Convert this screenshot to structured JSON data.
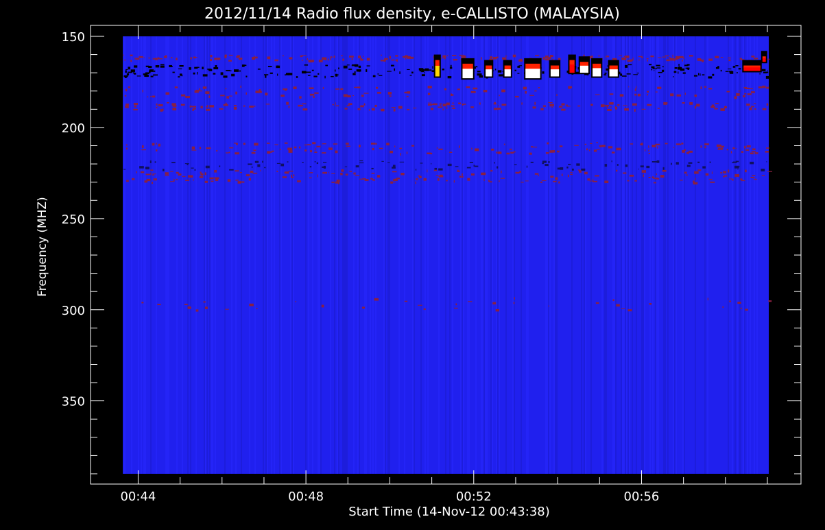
{
  "chart_data": {
    "type": "heatmap",
    "title": "2012/11/14  Radio flux density, e-CALLISTO (MALAYSIA)",
    "xlabel": "Start Time (14-Nov-12 00:43:38)",
    "ylabel": "Frequency (MHZ)",
    "x_tick_labels": [
      "00:44",
      "00:48",
      "00:52",
      "00:56"
    ],
    "x_tick_minutes": [
      0.3667,
      4.3667,
      8.3667,
      12.3667
    ],
    "x_range_minutes": [
      0,
      15.4
    ],
    "y_ticks": [
      150,
      200,
      250,
      300,
      350
    ],
    "y_range": [
      150,
      390
    ],
    "y_reversed": true,
    "background_color": "#2020ee",
    "color_scale": [
      "#000000",
      "#2020ee",
      "#8a1c3c",
      "#ff0000",
      "#ffd700",
      "#ffffff"
    ],
    "horizontal_bands": [
      {
        "freq_start": 160,
        "freq_end": 163,
        "color": "#8a2040",
        "density": 0.55
      },
      {
        "freq_start": 165,
        "freq_end": 172,
        "color": "#000000",
        "density": 0.75
      },
      {
        "freq_start": 177,
        "freq_end": 183,
        "color": "#8a2040",
        "density": 0.35
      },
      {
        "freq_start": 186,
        "freq_end": 190,
        "color": "#8a2040",
        "density": 0.45
      },
      {
        "freq_start": 208,
        "freq_end": 214,
        "color": "#8a2040",
        "density": 0.45
      },
      {
        "freq_start": 218,
        "freq_end": 223,
        "color": "#101060",
        "density": 0.3
      },
      {
        "freq_start": 223,
        "freq_end": 230,
        "color": "#8a2040",
        "density": 0.6
      },
      {
        "freq_start": 293,
        "freq_end": 300,
        "color": "#8a2040",
        "density": 0.12
      }
    ],
    "bursts": [
      {
        "t": 7.45,
        "duration": 0.1,
        "freq_start": 163,
        "freq_end": 172,
        "color": "#ffd700"
      },
      {
        "t": 8.1,
        "duration": 0.25,
        "freq_start": 165,
        "freq_end": 173,
        "color": "#ffffff"
      },
      {
        "t": 8.65,
        "duration": 0.15,
        "freq_start": 166,
        "freq_end": 172,
        "color": "#ffffff"
      },
      {
        "t": 9.1,
        "duration": 0.15,
        "freq_start": 166,
        "freq_end": 172,
        "color": "#ffffff"
      },
      {
        "t": 9.6,
        "duration": 0.35,
        "freq_start": 165,
        "freq_end": 173,
        "color": "#ffffff"
      },
      {
        "t": 10.2,
        "duration": 0.2,
        "freq_start": 166,
        "freq_end": 172,
        "color": "#ffffff"
      },
      {
        "t": 10.65,
        "duration": 0.12,
        "freq_start": 163,
        "freq_end": 170,
        "color": "#ff0000"
      },
      {
        "t": 10.9,
        "duration": 0.2,
        "freq_start": 164,
        "freq_end": 170,
        "color": "#ffffff"
      },
      {
        "t": 11.2,
        "duration": 0.2,
        "freq_start": 165,
        "freq_end": 172,
        "color": "#ffffff"
      },
      {
        "t": 11.6,
        "duration": 0.2,
        "freq_start": 166,
        "freq_end": 172,
        "color": "#ffffff"
      },
      {
        "t": 14.8,
        "duration": 0.4,
        "freq_start": 166,
        "freq_end": 169,
        "color": "#ff0000"
      },
      {
        "t": 15.25,
        "duration": 0.08,
        "freq_start": 161,
        "freq_end": 164,
        "color": "#ff0000"
      }
    ]
  }
}
